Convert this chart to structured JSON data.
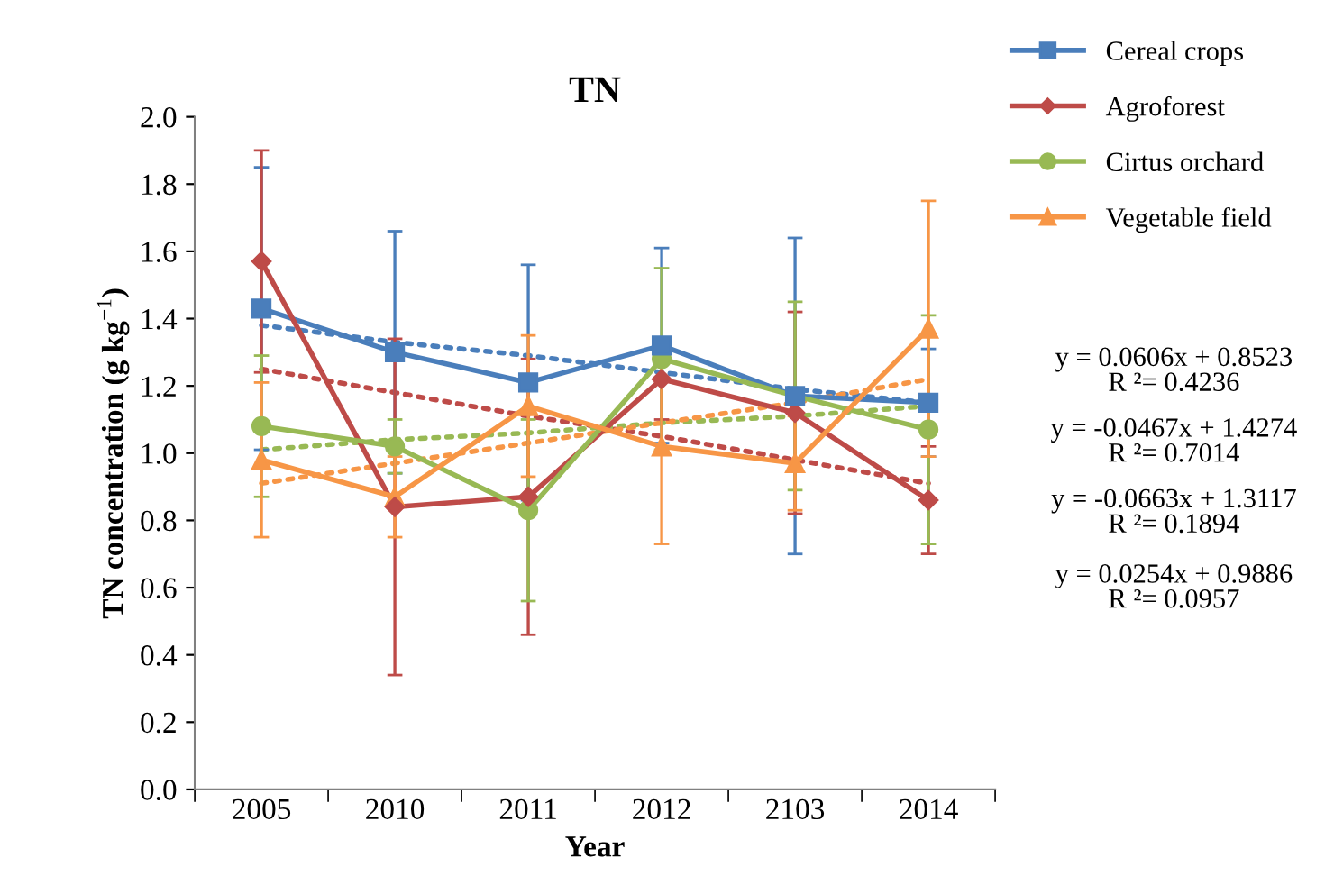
{
  "chart_data": {
    "type": "line",
    "title": "TN",
    "xlabel": "Year",
    "ylabel": "TN concentration (g kg$^{−1}$)",
    "categories": [
      "2005",
      "2010",
      "2011",
      "2012",
      "2103",
      "2014"
    ],
    "ylim": [
      0,
      2.0
    ],
    "yticks": [
      {
        "value": 0,
        "label": "0.0"
      },
      {
        "value": 0.2,
        "label": "0.2"
      },
      {
        "value": 0.4,
        "label": "0.4"
      },
      {
        "value": 0.6,
        "label": "0.6"
      },
      {
        "value": 0.8,
        "label": "0.8"
      },
      {
        "value": 1.0,
        "label": "1.0"
      },
      {
        "value": 1.2,
        "label": "1.2"
      },
      {
        "value": 1.4,
        "label": "1.4"
      },
      {
        "value": 1.6,
        "label": "1.6"
      },
      {
        "value": 1.8,
        "label": "1.8"
      },
      {
        "value": 2.0,
        "label": "2.0"
      }
    ],
    "grid": false,
    "legend": "top right",
    "line_style": "solid",
    "series": [
      {
        "name": "Cereal crops",
        "color": "#4a7ebb",
        "marker": "square",
        "values": [
          1.43,
          1.3,
          1.21,
          1.32,
          1.17,
          1.15
        ],
        "errors": [
          0.42,
          0.36,
          0.35,
          0.29,
          0.47,
          0.16
        ]
      },
      {
        "name": "Agroforest",
        "color": "#be4b48",
        "marker": "diamond",
        "values": [
          1.57,
          0.84,
          0.87,
          1.22,
          1.12,
          0.86
        ],
        "errors": [
          0.33,
          0.5,
          0.41,
          0.12,
          0.3,
          0.16
        ]
      },
      {
        "name": "Cirtus orchard",
        "color": "#98b954",
        "marker": "circle",
        "values": [
          1.08,
          1.02,
          0.83,
          1.28,
          1.17,
          1.07
        ],
        "errors": [
          0.21,
          0.08,
          0.27,
          0.27,
          0.28,
          0.34
        ]
      },
      {
        "name": "Vegetable field",
        "color": "#f79646",
        "marker": "triangle",
        "values": [
          0.98,
          0.87,
          1.14,
          1.02,
          0.97,
          1.37
        ],
        "errors": [
          0.23,
          0.12,
          0.21,
          0.29,
          0.14,
          0.38
        ]
      },
      {
        "type": "line",
        "color": "#4a7ebb",
        "line_style": "dotted",
        "values": [
          1.38,
          1.33,
          1.29,
          1.24,
          1.19,
          1.15
        ]
      },
      {
        "type": "line",
        "color": "#be4b48",
        "line_style": "dotted",
        "values": [
          1.25,
          1.18,
          1.11,
          1.05,
          0.98,
          0.91
        ]
      },
      {
        "type": "line",
        "color": "#98b954",
        "line_style": "dotted",
        "values": [
          1.01,
          1.04,
          1.06,
          1.09,
          1.11,
          1.14
        ]
      },
      {
        "type": "line",
        "color": "#f79646",
        "line_style": "dotted",
        "values": [
          0.91,
          0.97,
          1.03,
          1.09,
          1.15,
          1.22
        ]
      }
    ],
    "annotations": [
      "y = 0.0606x + 0.8523\nR ²= 0.4236",
      "y = -0.0467x + 1.4274\nR ²= 0.7014",
      "y = -0.0663x + 1.3117\nR ²= 0.1894",
      "y = 0.0254x + 0.9886\nR ²= 0.0957"
    ]
  }
}
